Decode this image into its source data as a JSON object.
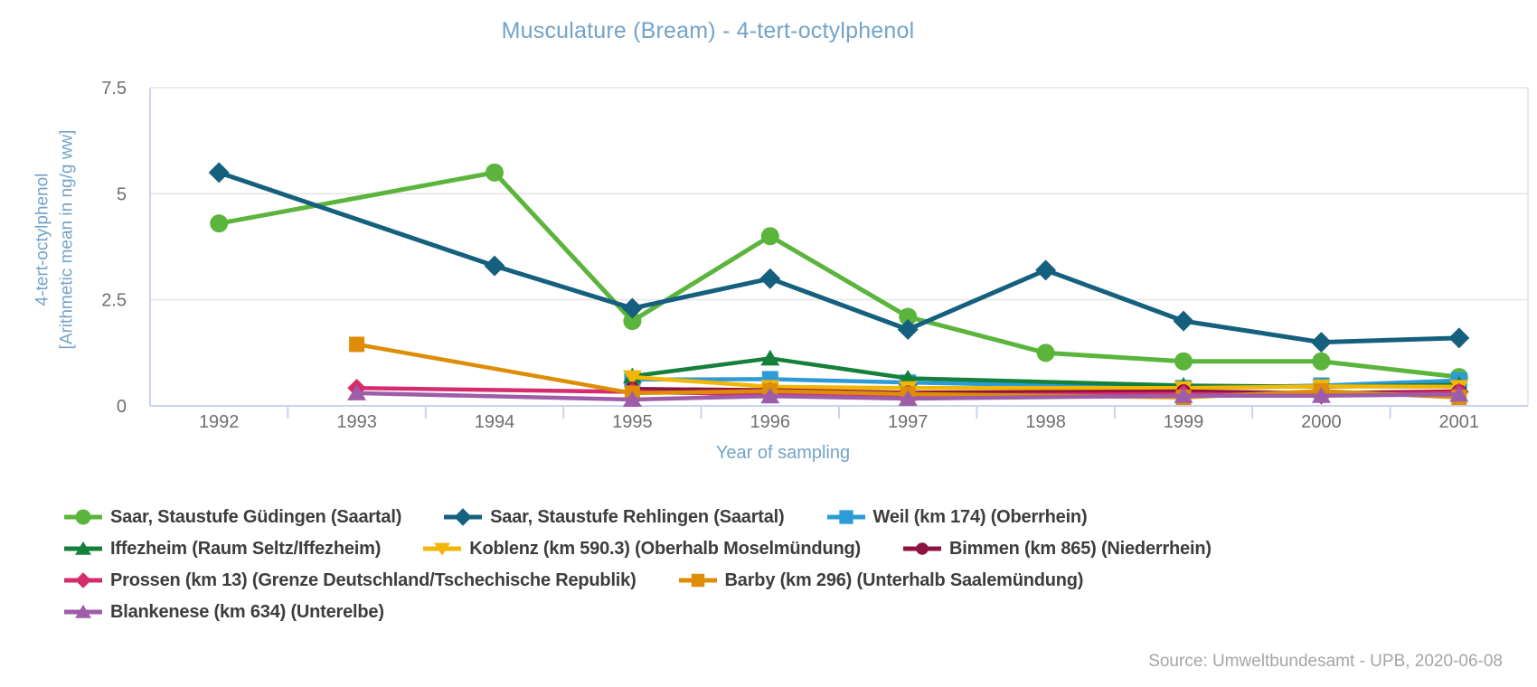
{
  "source_note": "Source: Umweltbundesamt - UPB, 2020-06-08",
  "chart_data": {
    "type": "line",
    "title": "Musculature (Bream) - 4-tert-octylphenol",
    "xlabel": "Year of sampling",
    "ylabel": "4-tert-octylphenol",
    "ylabel_unit": "[Arithmetic mean in ng/g ww]",
    "x": [
      "1992",
      "1993",
      "1994",
      "1995",
      "1996",
      "1997",
      "1998",
      "1999",
      "2000",
      "2001"
    ],
    "ylim": [
      0,
      7.5
    ],
    "yticks": [
      0,
      2.5,
      5,
      7.5
    ],
    "ytick_labels": [
      "0",
      "2.5",
      "5",
      "7.5"
    ],
    "grid": "horizontal",
    "legend_position": "bottom-left",
    "series": [
      {
        "name": "Saar, Staustufe Güdingen (Saartal)",
        "marker": "circle",
        "color": "#5bb53c",
        "values": [
          4.3,
          null,
          5.5,
          2.0,
          4.0,
          2.1,
          1.25,
          1.05,
          1.05,
          0.68
        ]
      },
      {
        "name": "Saar, Staustufe Rehlingen (Saartal)",
        "marker": "diamond",
        "color": "#15607e",
        "values": [
          5.5,
          null,
          3.3,
          2.3,
          3.0,
          1.8,
          3.2,
          2.0,
          1.5,
          1.6
        ]
      },
      {
        "name": "Weil (km 174) (Oberrhein)",
        "marker": "square",
        "color": "#2d9bd5",
        "values": [
          null,
          null,
          null,
          0.62,
          0.63,
          0.55,
          null,
          0.42,
          0.48,
          0.6
        ]
      },
      {
        "name": "Iffezheim (Raum Seltz/Iffezheim)",
        "marker": "triangle-up",
        "color": "#15803a",
        "values": [
          null,
          null,
          null,
          0.7,
          1.12,
          0.65,
          null,
          0.48,
          0.45,
          0.5
        ]
      },
      {
        "name": "Koblenz (km 590.3) (Oberhalb Moselmündung)",
        "marker": "triangle-down",
        "color": "#f2b705",
        "values": [
          null,
          null,
          null,
          0.68,
          0.45,
          0.42,
          null,
          0.42,
          0.46,
          0.45
        ]
      },
      {
        "name": "Bimmen (km 865) (Niederrhein)",
        "marker": "circle",
        "color": "#8e1342",
        "values": [
          null,
          null,
          null,
          0.4,
          0.37,
          0.31,
          null,
          0.34,
          0.3,
          0.34
        ]
      },
      {
        "name": "Prossen (km 13) (Grenze Deutschland/Tschechische Republik)",
        "marker": "diamond",
        "color": "#d62b6d",
        "values": [
          null,
          0.42,
          null,
          0.33,
          0.27,
          0.25,
          null,
          0.28,
          0.25,
          0.32
        ]
      },
      {
        "name": "Barby (km 296) (Unterhalb Saalemündung)",
        "marker": "square",
        "color": "#dd8e06",
        "values": [
          null,
          1.45,
          null,
          0.3,
          0.35,
          0.28,
          null,
          0.2,
          0.35,
          0.2
        ]
      },
      {
        "name": "Blankenese (km 634) (Unterelbe)",
        "marker": "triangle-up",
        "color": "#9d5da8",
        "values": [
          null,
          0.3,
          null,
          0.15,
          0.23,
          0.17,
          null,
          0.24,
          0.24,
          0.27
        ]
      }
    ]
  }
}
